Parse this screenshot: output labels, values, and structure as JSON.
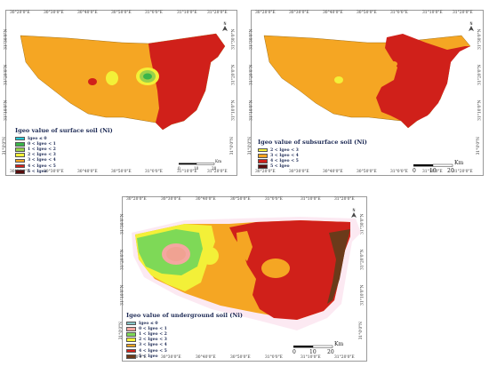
{
  "maps": [
    {
      "title": "Igeo value of surface soil (Ni)",
      "legend": [
        {
          "label": "Igeo ≤ 0",
          "color": "#29c9d6"
        },
        {
          "label": "0 < Igeo < 1",
          "color": "#39b54a"
        },
        {
          "label": "1 < Igeo < 2",
          "color": "#9bd14a"
        },
        {
          "label": "2 < Igeo < 3",
          "color": "#f3f038"
        },
        {
          "label": "3 < Igeo < 4",
          "color": "#f5a623"
        },
        {
          "label": "4 < Igeo < 5",
          "color": "#d0201a"
        },
        {
          "label": "5 < Igeo",
          "color": "#5a0e0e"
        }
      ],
      "scale": {
        "unit": "Km",
        "ticks": [
          "0",
          "10",
          "20"
        ]
      },
      "top_ticks": [
        "30°20'0\"E",
        "30°30'0\"E",
        "30°40'0\"E",
        "30°50'0\"E",
        "31°0'0\"E",
        "31°10'0\"E",
        "31°20'0\"E"
      ],
      "bottom_ticks": [
        "30°20'0\"E",
        "30°30'0\"E",
        "30°40'0\"E",
        "30°50'0\"E",
        "31°0'0\"E",
        "31°10'0\"E",
        "31°20'0\"E"
      ],
      "left_ticks": [
        "31°0'0\"N",
        "31°10'0\"N",
        "31°20'0\"N",
        "31°30'0\"N"
      ],
      "right_ticks": [
        "31°0'0\"N",
        "31°10'0\"N",
        "31°20'0\"N",
        "31°30'0\"N"
      ]
    },
    {
      "title": "Igeo value of subsurface soil (Ni)",
      "legend": [
        {
          "label": "2 < Igeo < 3",
          "color": "#f3f038"
        },
        {
          "label": "3 < Igeo < 4",
          "color": "#f5a623"
        },
        {
          "label": "4 < Igeo < 5",
          "color": "#d0201a"
        },
        {
          "label": "5 < Igeo",
          "color": "#5a0e0e"
        }
      ],
      "scale": {
        "unit": "Km",
        "ticks": [
          "0",
          "10",
          "20"
        ]
      },
      "top_ticks": [
        "30°20'0\"E",
        "30°30'0\"E",
        "30°40'0\"E",
        "30°50'0\"E",
        "31°0'0\"E",
        "31°10'0\"E",
        "31°20'0\"E"
      ],
      "bottom_ticks": [
        "30°20'0\"E",
        "30°30'0\"E",
        "30°40'0\"E",
        "30°50'0\"E",
        "31°0'0\"E",
        "31°10'0\"E",
        "31°20'0\"E"
      ],
      "left_ticks": [
        "31°0'0\"N",
        "31°10'0\"N",
        "31°20'0\"N",
        "31°30'0\"N"
      ],
      "right_ticks": [
        "31°0'0\"N",
        "31°10'0\"N",
        "31°20'0\"N",
        "31°30'0\"N"
      ]
    },
    {
      "title": "Igeo value of underground soil (Ni)",
      "legend": [
        {
          "label": "Igeo ≤ 0",
          "color": "#88c6c8"
        },
        {
          "label": "0 < Igeo < 1",
          "color": "#f4a7a0"
        },
        {
          "label": "1 < Igeo < 2",
          "color": "#7ed957"
        },
        {
          "label": "2 < Igeo < 3",
          "color": "#f3f038"
        },
        {
          "label": "3 < Igeo < 4",
          "color": "#f5a623"
        },
        {
          "label": "4 < Igeo < 5",
          "color": "#d0201a"
        },
        {
          "label": "5 < Igeo",
          "color": "#6b3a1a"
        }
      ],
      "scale": {
        "unit": "Km",
        "ticks": [
          "0",
          "10",
          "20"
        ]
      },
      "top_ticks": [
        "30°20'0\"E",
        "30°30'0\"E",
        "30°40'0\"E",
        "30°50'0\"E",
        "31°0'0\"E",
        "31°10'0\"E",
        "31°20'0\"E"
      ],
      "bottom_ticks": [
        "30°20'0\"E",
        "30°30'0\"E",
        "30°40'0\"E",
        "30°50'0\"E",
        "31°0'0\"E",
        "31°10'0\"E",
        "31°20'0\"E"
      ],
      "left_ticks": [
        "31°0'0\"N",
        "31°10'0\"N",
        "31°20'0\"N",
        "31°30'0\"N"
      ],
      "right_ticks": [
        "31°0'0\"N",
        "31°10'0\"N",
        "31°20'0\"N",
        "31°30'0\"N"
      ]
    }
  ]
}
